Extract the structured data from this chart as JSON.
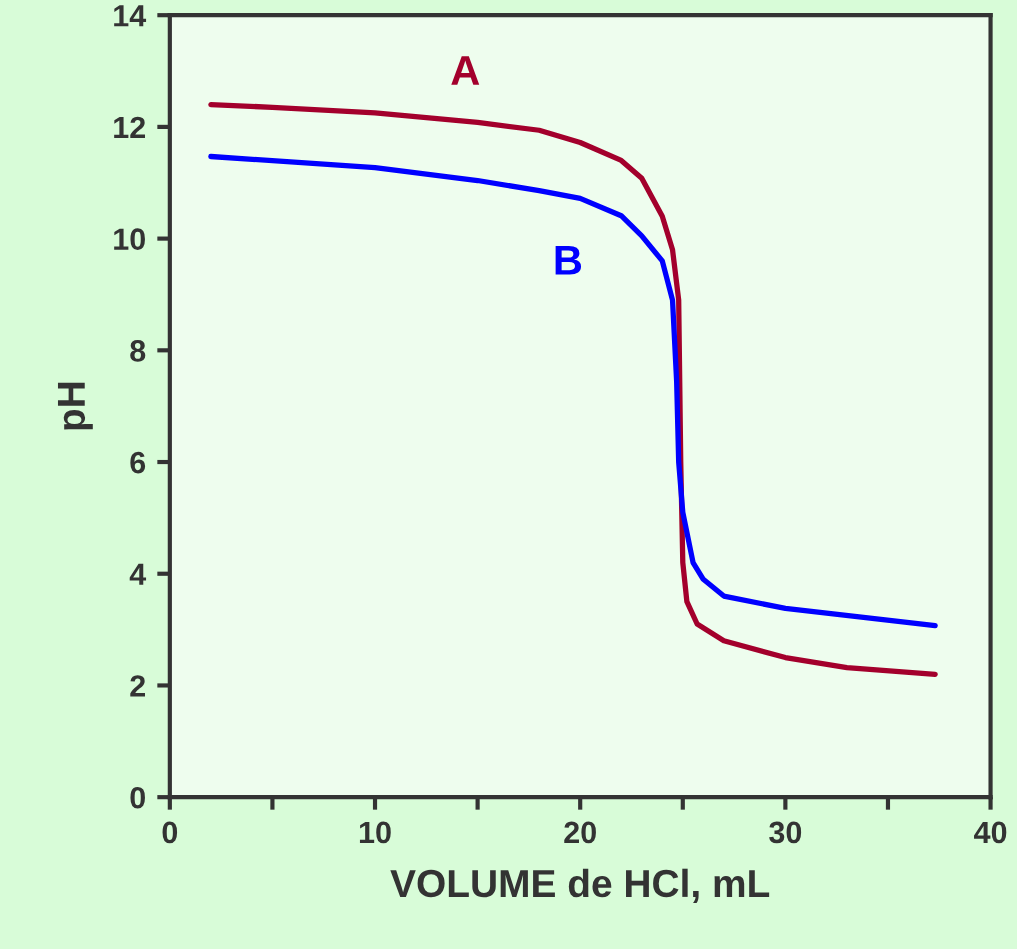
{
  "chart_data": {
    "type": "line",
    "xlabel": "VOLUME de HCl, mL",
    "ylabel": "pH",
    "xlim": [
      0,
      40
    ],
    "ylim": [
      0,
      14
    ],
    "xticks": [
      0,
      {
        "value": 5,
        "label": null
      },
      10,
      {
        "value": 15,
        "label": null
      },
      20,
      {
        "value": 25,
        "label": null
      },
      30,
      {
        "value": 35,
        "label": null
      },
      40
    ],
    "yticks": [
      0,
      2,
      4,
      6,
      8,
      10,
      12,
      14
    ],
    "grid": false,
    "legend": false,
    "marker": "none",
    "line_style": "solid",
    "series": [
      {
        "name": "A",
        "color": "#a3002c",
        "x": [
          2,
          5,
          10,
          15,
          18,
          20,
          22,
          23,
          24,
          24.5,
          24.8,
          24.9,
          25.0,
          25.2,
          25.7,
          27,
          30,
          33,
          37.3
        ],
        "values": [
          12.4,
          12.35,
          12.25,
          12.08,
          11.94,
          11.72,
          11.4,
          11.08,
          10.4,
          9.8,
          8.9,
          6.0,
          4.2,
          3.5,
          3.1,
          2.8,
          2.5,
          2.32,
          2.2
        ]
      },
      {
        "name": "B",
        "color": "#0000ff",
        "x": [
          2,
          10,
          15,
          18,
          20,
          22,
          23,
          24,
          24.5,
          24.7,
          24.8,
          25,
          25.5,
          26,
          27,
          30,
          37.3
        ],
        "values": [
          11.47,
          11.27,
          11.04,
          10.86,
          10.72,
          10.41,
          10.05,
          9.6,
          8.9,
          7.45,
          6.0,
          5.1,
          4.2,
          3.9,
          3.6,
          3.38,
          3.07
        ]
      }
    ]
  }
}
